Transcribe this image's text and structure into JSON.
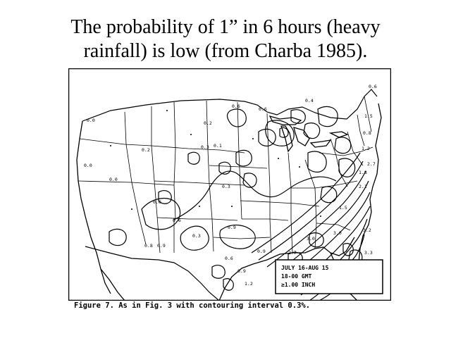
{
  "slide": {
    "title_line1": "The probability of 1” in 6 hours (heavy",
    "title_line2": "rainfall) is low (from Charba 1985)."
  },
  "map": {
    "legend": {
      "line1": "JULY 16-AUG 15",
      "line2": "18-00 GMT",
      "line3": "≥1.00 INCH"
    },
    "value_labels": [
      {
        "id": "l01",
        "text": "0.0"
      },
      {
        "id": "l02",
        "text": "0.0"
      },
      {
        "id": "l03",
        "text": "0.0"
      },
      {
        "id": "l04",
        "text": "0.0"
      },
      {
        "id": "l05",
        "text": "0.2"
      },
      {
        "id": "l06",
        "text": "0.1"
      },
      {
        "id": "l07",
        "text": "0.2"
      },
      {
        "id": "l08",
        "text": "0.3"
      },
      {
        "id": "l09",
        "text": "0.6"
      },
      {
        "id": "l10",
        "text": "0.6"
      },
      {
        "id": "l11",
        "text": "0.4"
      },
      {
        "id": "l12",
        "text": "0.6"
      },
      {
        "id": "l13",
        "text": "1.5"
      },
      {
        "id": "l14",
        "text": "0.8"
      },
      {
        "id": "l15",
        "text": "1.2"
      },
      {
        "id": "l16",
        "text": "2.7"
      },
      {
        "id": "l17",
        "text": "1.8"
      },
      {
        "id": "l18",
        "text": "2.1"
      },
      {
        "id": "l19",
        "text": "0.3"
      },
      {
        "id": "l20",
        "text": "0.6"
      },
      {
        "id": "l21",
        "text": "0.9"
      },
      {
        "id": "l22",
        "text": "1.5"
      },
      {
        "id": "l23",
        "text": "3.0"
      },
      {
        "id": "l24",
        "text": "3.2"
      },
      {
        "id": "l25",
        "text": "3.3"
      },
      {
        "id": "l26",
        "text": "1.2"
      },
      {
        "id": "l27",
        "text": "0.9"
      },
      {
        "id": "l28",
        "text": "0.6"
      },
      {
        "id": "l29",
        "text": "0.3"
      },
      {
        "id": "l30",
        "text": "0.9"
      },
      {
        "id": "l31",
        "text": "3.0"
      },
      {
        "id": "l32",
        "text": "2.7"
      },
      {
        "id": "l33",
        "text": "0.8"
      },
      {
        "id": "l34",
        "text": "0.9"
      }
    ]
  },
  "caption": "Figure 7.  As in Fig. 3 with contouring interval 0.3%."
}
